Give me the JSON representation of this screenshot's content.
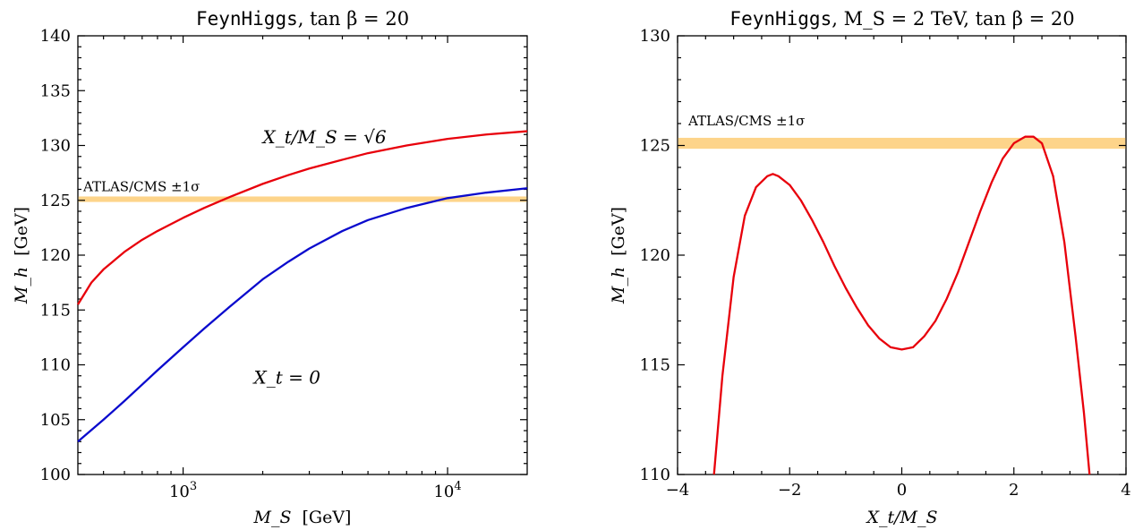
{
  "chart_data": [
    {
      "type": "line",
      "title_code": "FeynHiggs",
      "title_rest": ",   tan β = 20",
      "xlabel": "M_S",
      "xlabel_unit": "[GeV]",
      "ylabel": "M_h",
      "ylabel_unit": "[GeV]",
      "xscale": "log",
      "xlim": [
        400,
        20000
      ],
      "ylim": [
        100,
        140
      ],
      "yticks": [
        100,
        105,
        110,
        115,
        120,
        125,
        130,
        135,
        140
      ],
      "xtick_labels": [
        {
          "base": "10",
          "exp": "3",
          "value": 1000
        },
        {
          "base": "10",
          "exp": "4",
          "value": 10000
        }
      ],
      "band": {
        "label": "ATLAS/CMS ±1σ",
        "y": [
          124.85,
          125.35
        ],
        "color": "#fdd48a"
      },
      "series": [
        {
          "name": "X_t/M_S = √6",
          "color": "#e8000b",
          "x": [
            400,
            450,
            500,
            600,
            700,
            800,
            1000,
            1200,
            1500,
            2000,
            2500,
            3000,
            4000,
            5000,
            7000,
            10000,
            14000,
            20000
          ],
          "y": [
            115.5,
            117.5,
            118.7,
            120.3,
            121.4,
            122.2,
            123.4,
            124.3,
            125.3,
            126.5,
            127.3,
            127.9,
            128.7,
            129.3,
            130.0,
            130.6,
            131.0,
            131.3
          ]
        },
        {
          "name": "X_t = 0",
          "color": "#0a0acd",
          "x": [
            400,
            500,
            600,
            700,
            800,
            1000,
            1200,
            1500,
            2000,
            2500,
            3000,
            4000,
            5000,
            7000,
            10000,
            14000,
            20000
          ],
          "y": [
            103.0,
            105.0,
            106.7,
            108.2,
            109.5,
            111.6,
            113.3,
            115.3,
            117.8,
            119.4,
            120.6,
            122.2,
            123.2,
            124.3,
            125.2,
            125.7,
            126.1
          ]
        }
      ],
      "annotations": [
        {
          "text": "X_t/M_S = √6",
          "x": 2000,
          "y": 130.2
        },
        {
          "text": "X_t = 0",
          "x": 1850,
          "y": 108.3
        }
      ]
    },
    {
      "type": "line",
      "title_code": "FeynHiggs",
      "title_rest": ",  M_S = 2 TeV,  tan β = 20",
      "xlabel": "X_t/M_S",
      "ylabel": "M_h",
      "ylabel_unit": "[GeV]",
      "xlim": [
        -4,
        4
      ],
      "ylim": [
        110,
        130
      ],
      "xticks": [
        -4,
        -2,
        0,
        2,
        4
      ],
      "yticks": [
        110,
        115,
        120,
        125,
        130
      ],
      "band": {
        "label": "ATLAS/CMS ±1σ",
        "y": [
          124.85,
          125.35
        ],
        "color": "#fdd48a"
      },
      "series": [
        {
          "name": "",
          "color": "#e8000b",
          "x": [
            -3.35,
            -3.2,
            -3.0,
            -2.8,
            -2.6,
            -2.4,
            -2.3,
            -2.2,
            -2.0,
            -1.8,
            -1.6,
            -1.4,
            -1.2,
            -1.0,
            -0.8,
            -0.6,
            -0.4,
            -0.2,
            0.0,
            0.2,
            0.4,
            0.6,
            0.8,
            1.0,
            1.2,
            1.4,
            1.6,
            1.8,
            2.0,
            2.2,
            2.35,
            2.5,
            2.7,
            2.9,
            3.1,
            3.25,
            3.35
          ],
          "y": [
            110.0,
            114.5,
            119.0,
            121.8,
            123.1,
            123.6,
            123.7,
            123.6,
            123.2,
            122.5,
            121.6,
            120.6,
            119.5,
            118.5,
            117.6,
            116.8,
            116.2,
            115.8,
            115.7,
            115.8,
            116.3,
            117.0,
            118.0,
            119.2,
            120.6,
            122.0,
            123.3,
            124.4,
            125.1,
            125.4,
            125.4,
            125.1,
            123.6,
            120.6,
            116.3,
            112.8,
            110.0
          ]
        }
      ]
    }
  ]
}
